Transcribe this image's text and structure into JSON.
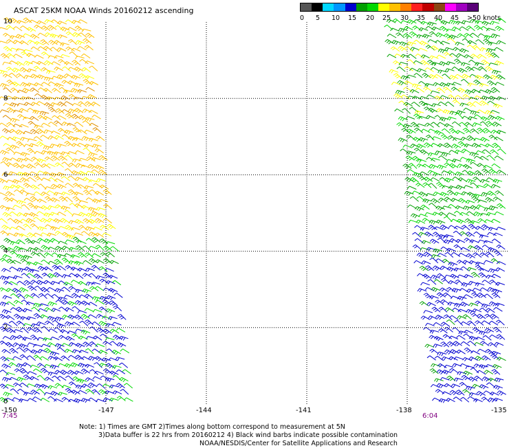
{
  "title": "ASCAT 25KM NOAA Winds 20160212 ascending",
  "legend": {
    "colors": [
      "#555555",
      "#000000",
      "#00d8ff",
      "#0096ff",
      "#0000d0",
      "#00a000",
      "#00d800",
      "#ffff00",
      "#ffc000",
      "#ff8000",
      "#ff2020",
      "#c00000",
      "#8b4513",
      "#ff00ff",
      "#a000c0",
      "#5a0078"
    ],
    "labels": [
      "0",
      "5",
      "10",
      "15",
      "20",
      "25",
      "30",
      "35",
      "40",
      "45",
      ">50 knots"
    ]
  },
  "axes": {
    "y_ticks": [
      "10",
      "8",
      "6",
      "4",
      "2",
      "0"
    ],
    "x_ticks": [
      "-150",
      "-147",
      "-144",
      "-141",
      "-138",
      "-135"
    ]
  },
  "pass_times": [
    "7:45",
    "6:04"
  ],
  "notes": [
    "Note: 1) Times are GMT 2)Times along bottom correspond to measurement at 5N",
    "3)Data buffer is 22 hrs from 20160212 4) Black wind barbs indicate possible contamination",
    "NOAA/NESDIS/Center for Satellite Applications and Research"
  ],
  "map": {
    "lon_range": [
      -150,
      -135
    ],
    "lat_range": [
      0,
      10
    ],
    "swaths": [
      {
        "name": "west-pass",
        "lon_west_top": -150,
        "lon_east_top": -147.4,
        "lon_west_bottom": -150,
        "lon_east_bottom": -146.1
      },
      {
        "name": "east-pass",
        "lon_west_top": -138.5,
        "lon_east_top": -135,
        "lon_west_bottom": -137.0,
        "lon_east_bottom": -135
      }
    ],
    "barb_colors": {
      "calm": "#0000d0",
      "light": "#00a000",
      "moderate": "#00d800",
      "fresh": "#ffff00",
      "strong": "#ffc000",
      "stronger": "#e09000"
    }
  }
}
